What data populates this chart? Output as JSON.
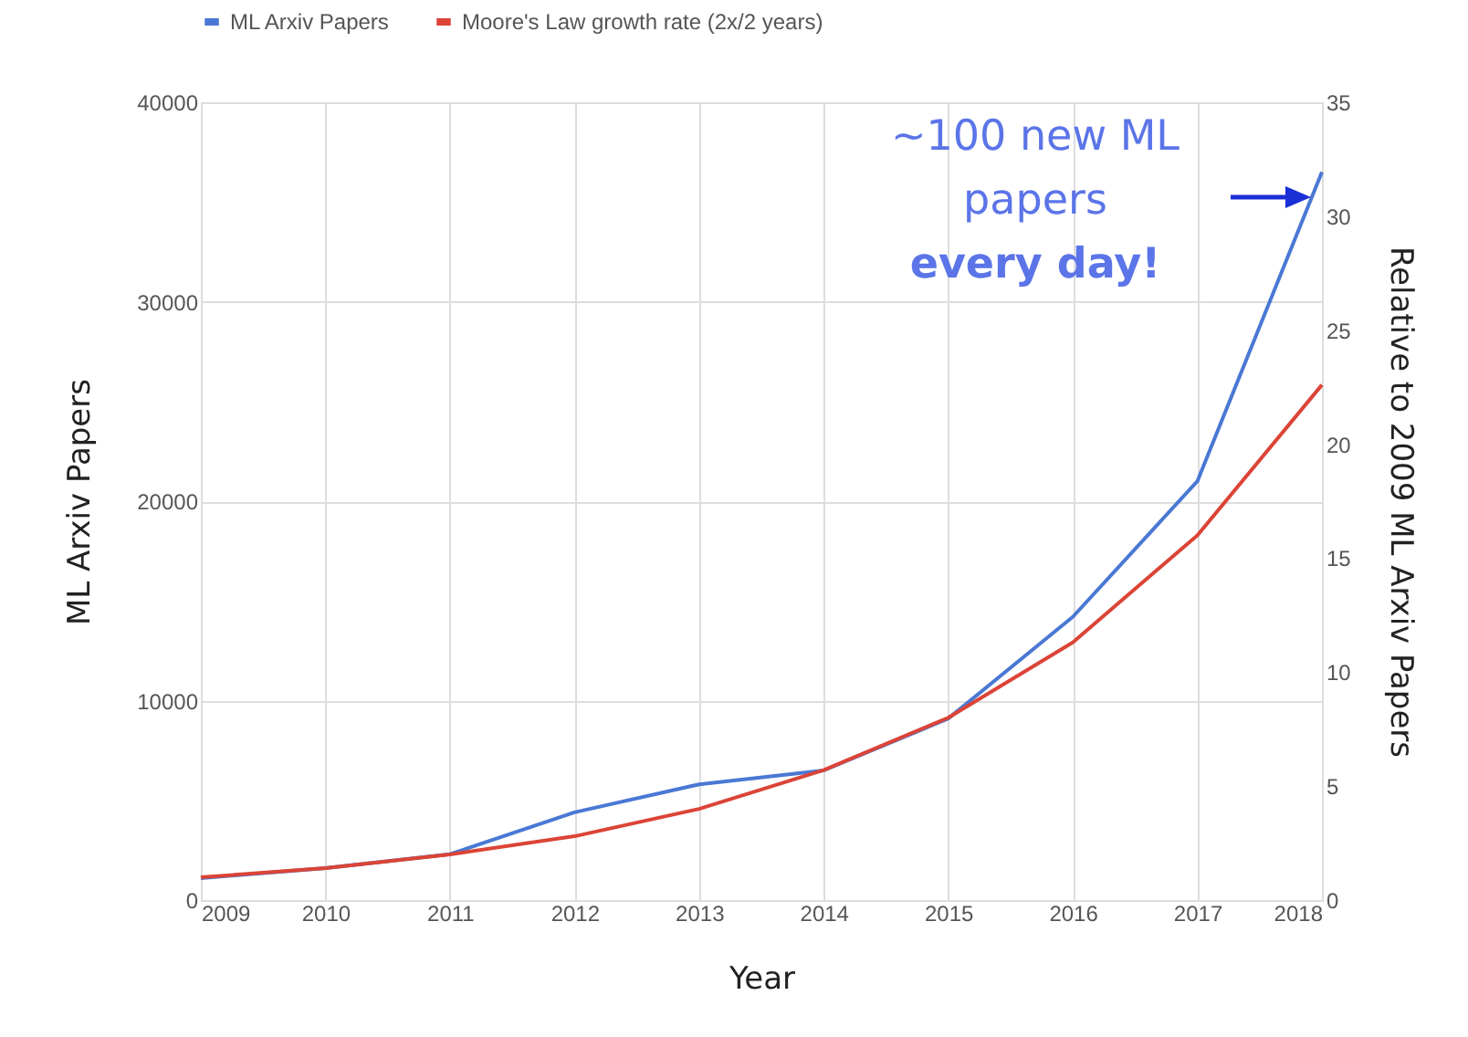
{
  "chart_data": {
    "type": "line",
    "xlabel": "Year",
    "ylabel": "ML Arxiv Papers",
    "y2label": "Relative to 2009 ML Arxiv Papers",
    "x": [
      2009,
      2010,
      2011,
      2012,
      2013,
      2014,
      2015,
      2016,
      2017,
      2018
    ],
    "series": [
      {
        "name": "ML Arxiv Papers",
        "color": "#4a78d4",
        "values": [
          1100,
          1600,
          2300,
          4400,
          5800,
          6500,
          9100,
          14200,
          21000,
          36500
        ]
      },
      {
        "name": "Moore's Law growth rate (2x/2 years)",
        "color": "#db4437",
        "axis": "y2",
        "values": [
          1.0,
          1.4,
          2.0,
          2.8,
          4.0,
          5.7,
          8.0,
          11.3,
          16.0,
          22.6
        ]
      }
    ],
    "xlim": [
      2009,
      2018
    ],
    "xticks": [
      2009,
      2010,
      2011,
      2012,
      2013,
      2014,
      2015,
      2016,
      2017,
      2018
    ],
    "ylim": [
      0,
      40000
    ],
    "yticks": [
      0,
      10000,
      20000,
      30000,
      40000
    ],
    "y2lim": [
      0,
      35
    ],
    "y2ticks": [
      0,
      5,
      10,
      15,
      20,
      25,
      30,
      35
    ],
    "grid": true,
    "legend": "top",
    "annotations": [
      "~100 new ML papers every day!"
    ]
  }
}
